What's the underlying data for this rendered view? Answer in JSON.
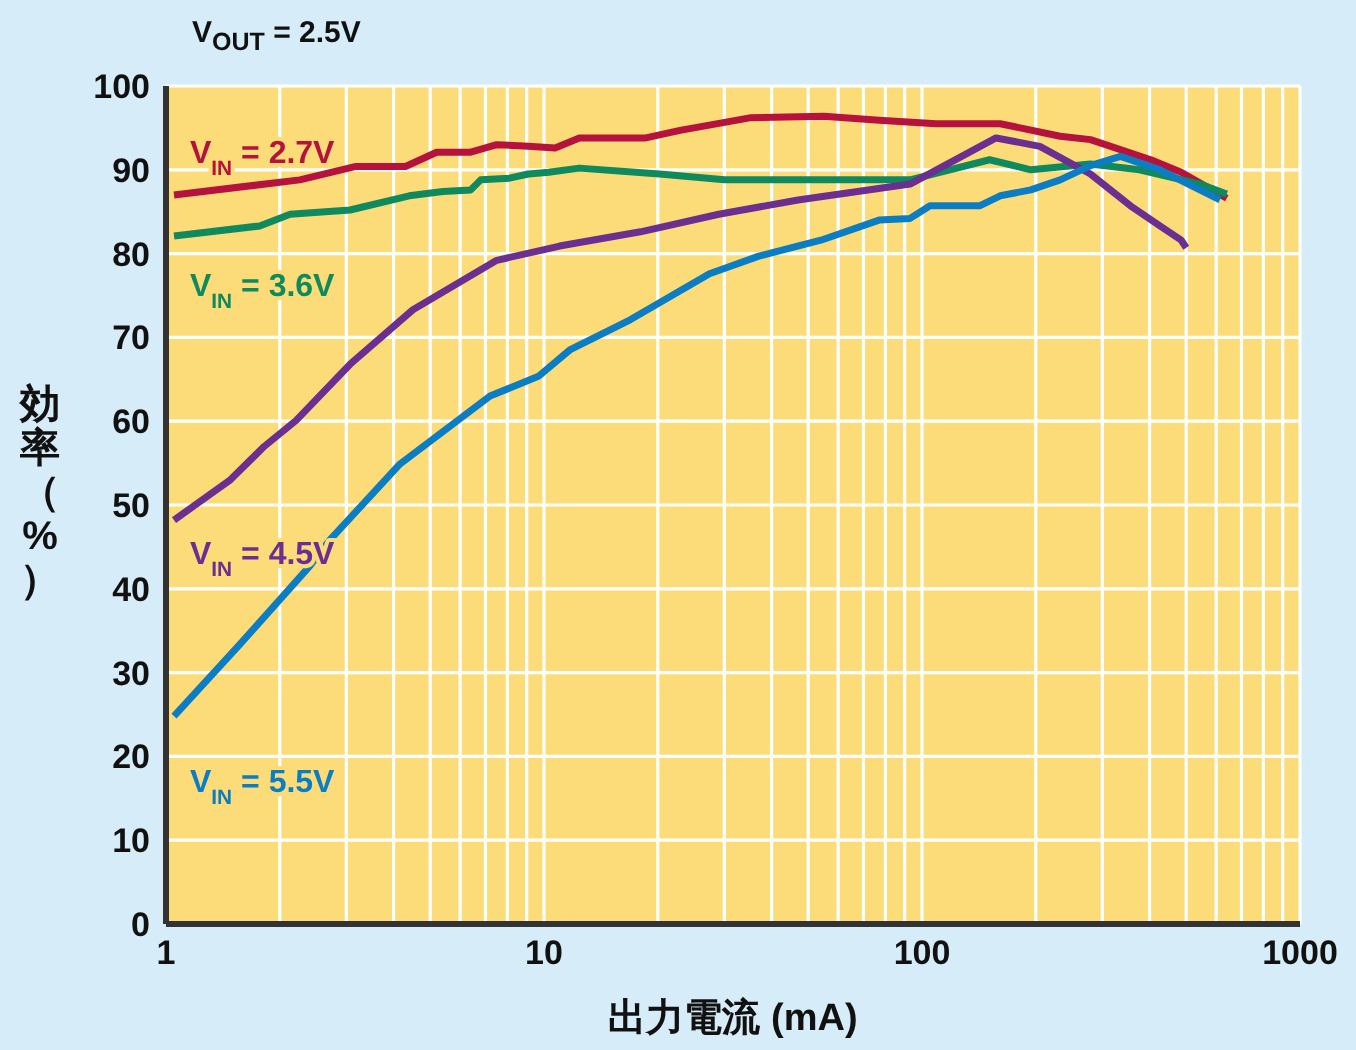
{
  "chart_data": {
    "type": "line",
    "xlabel": "出力電流 (mA)",
    "ylabel": "効率（%）",
    "annotations": [
      "V$_{OUT}$ = 2.5V"
    ],
    "log": "x",
    "grid": true,
    "legend": false,
    "marker": "none",
    "line_style": "solid",
    "xlim": [
      1,
      1000
    ],
    "xticks": [
      1,
      {
        "value": 2,
        "label": null
      },
      {
        "value": 3,
        "label": null
      },
      {
        "value": 4,
        "label": null
      },
      {
        "value": 5,
        "label": null
      },
      {
        "value": 6,
        "label": null
      },
      {
        "value": 7,
        "label": null
      },
      {
        "value": 8,
        "label": null
      },
      {
        "value": 9,
        "label": null
      },
      10,
      {
        "value": 20,
        "label": null
      },
      {
        "value": 30,
        "label": null
      },
      {
        "value": 40,
        "label": null
      },
      {
        "value": 50,
        "label": null
      },
      {
        "value": 60,
        "label": null
      },
      {
        "value": 70,
        "label": null
      },
      {
        "value": 80,
        "label": null
      },
      {
        "value": 90,
        "label": null
      },
      100,
      {
        "value": 200,
        "label": null
      },
      {
        "value": 300,
        "label": null
      },
      {
        "value": 400,
        "label": null
      },
      {
        "value": 500,
        "label": null
      },
      {
        "value": 600,
        "label": null
      },
      {
        "value": 700,
        "label": null
      },
      {
        "value": 800,
        "label": null
      },
      {
        "value": 900,
        "label": null
      },
      1000
    ],
    "ylim": [
      0,
      100
    ],
    "yticks": [
      0,
      10,
      20,
      30,
      40,
      50,
      60,
      70,
      80,
      90,
      100
    ],
    "series": [
      {
        "name": "V$_{IN}$ = 2.7V",
        "color": "#b5123e",
        "x": [
          1.05,
          2.26,
          3.18,
          4.3,
          5.2,
          6.4,
          7.5,
          9.1,
          10.7,
          12.4,
          18.6,
          22.9,
          35,
          55,
          77,
          109,
          161,
          232,
          279,
          403,
          485,
          640
        ],
        "values": [
          87,
          88.8,
          90.4,
          90.4,
          92.1,
          92.1,
          93,
          92.8,
          92.6,
          93.8,
          93.8,
          94.7,
          96.2,
          96.4,
          95.9,
          95.5,
          95.5,
          94,
          93.6,
          91.2,
          89.7,
          86.6
        ]
      },
      {
        "name": "V$_{IN}$ = 3.6V",
        "color": "#0e8a5e",
        "x": [
          1.05,
          1.77,
          2.13,
          3.07,
          4.4,
          5.4,
          6.4,
          6.8,
          8.1,
          9.1,
          10.3,
          12.4,
          20.2,
          30,
          47,
          93,
          151,
          194,
          279,
          376,
          544,
          640
        ],
        "values": [
          82.1,
          83.3,
          84.7,
          85.2,
          86.9,
          87.4,
          87.6,
          88.8,
          89,
          89.5,
          89.7,
          90.2,
          89.5,
          88.8,
          88.8,
          88.8,
          91.2,
          90,
          90.7,
          90,
          88.3,
          87.1
        ]
      },
      {
        "name": "V$_{IN}$ = 4.5V",
        "color": "#6b2e91",
        "x": [
          1.05,
          1.48,
          1.82,
          2.21,
          3.07,
          4.5,
          7.5,
          11,
          18,
          29,
          47,
          93,
          157,
          205,
          279,
          356,
          426,
          485,
          500
        ],
        "values": [
          48.2,
          53,
          57,
          60.1,
          66.8,
          73.3,
          79.2,
          80.9,
          82.6,
          84.7,
          86.4,
          88.3,
          93.8,
          92.8,
          89.5,
          85.7,
          83.3,
          81.6,
          80.7
        ]
      },
      {
        "name": "V$_{IN}$ = 5.5V",
        "color": "#0a7dc4",
        "x": [
          1.05,
          1.57,
          2.4,
          2.71,
          4.16,
          7.2,
          9.7,
          11.7,
          16.9,
          27.4,
          37,
          54,
          77,
          93,
          105,
          142,
          161,
          194,
          232,
          279,
          335,
          426,
          614
        ],
        "values": [
          24.8,
          33.4,
          42.7,
          45.8,
          54.9,
          63,
          65.4,
          68.5,
          72.1,
          77.6,
          79.7,
          81.6,
          84,
          84.2,
          85.7,
          85.7,
          86.9,
          87.6,
          88.8,
          90.5,
          91.6,
          90,
          86.4
        ]
      }
    ]
  }
}
